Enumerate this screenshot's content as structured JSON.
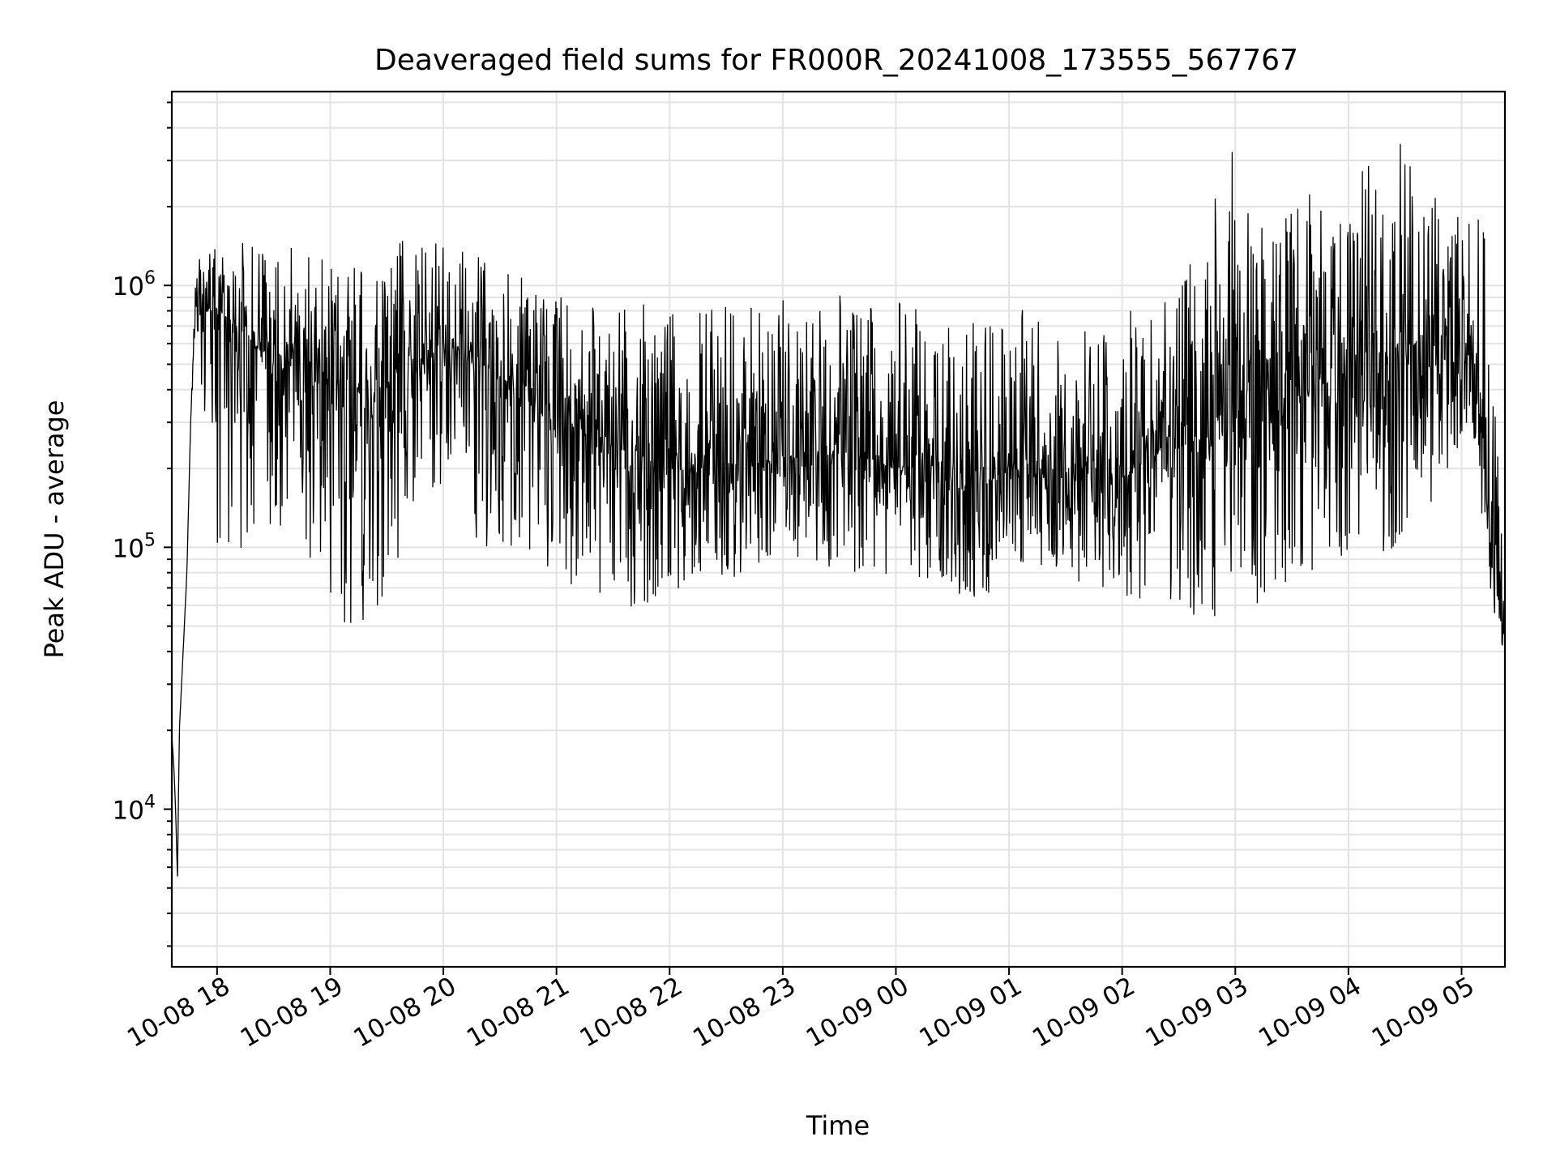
{
  "chart_data": {
    "type": "line",
    "title": "Deaveraged field sums for FR000R_20241008_173555_567767",
    "xlabel": "Time",
    "ylabel": "Peak ADU - average",
    "yscale": "log",
    "ylim": [
      2500,
      5500000
    ],
    "xlim": [
      "2024-10-08 17:36",
      "2024-10-09 05:23"
    ],
    "grid": true,
    "xticks": [
      {
        "t": "2024-10-08 18:00",
        "label": "10-08 18"
      },
      {
        "t": "2024-10-08 19:00",
        "label": "10-08 19"
      },
      {
        "t": "2024-10-08 20:00",
        "label": "10-08 20"
      },
      {
        "t": "2024-10-08 21:00",
        "label": "10-08 21"
      },
      {
        "t": "2024-10-08 22:00",
        "label": "10-08 22"
      },
      {
        "t": "2024-10-08 23:00",
        "label": "10-08 23"
      },
      {
        "t": "2024-10-09 00:00",
        "label": "10-09 00"
      },
      {
        "t": "2024-10-09 01:00",
        "label": "10-09 01"
      },
      {
        "t": "2024-10-09 02:00",
        "label": "10-09 02"
      },
      {
        "t": "2024-10-09 03:00",
        "label": "10-09 03"
      },
      {
        "t": "2024-10-09 04:00",
        "label": "10-09 04"
      },
      {
        "t": "2024-10-09 05:00",
        "label": "10-09 05"
      }
    ],
    "yticks": [
      {
        "v": 10000,
        "base": "10",
        "exp": "4"
      },
      {
        "v": 100000,
        "base": "10",
        "exp": "5"
      },
      {
        "v": 1000000,
        "base": "10",
        "exp": "6"
      }
    ],
    "series_color": "#000000",
    "grid_color": "#e3e3e3",
    "x": [
      "2024-10-08 17:36",
      "2024-10-08 17:37",
      "2024-10-08 17:38",
      "2024-10-08 17:39",
      "2024-10-08 17:40",
      "2024-10-08 17:42",
      "2024-10-08 17:44",
      "2024-10-08 17:46",
      "2024-10-08 17:48",
      "2024-10-08 17:50",
      "2024-10-08 17:52",
      "2024-10-08 17:54",
      "2024-10-08 17:56",
      "2024-10-08 18:00",
      "2024-10-08 18:10",
      "2024-10-08 18:20",
      "2024-10-08 18:30",
      "2024-10-08 18:40",
      "2024-10-08 18:50",
      "2024-10-08 19:00",
      "2024-10-08 19:10",
      "2024-10-08 19:20",
      "2024-10-08 19:30",
      "2024-10-08 19:40",
      "2024-10-08 19:50",
      "2024-10-08 20:00",
      "2024-10-08 20:10",
      "2024-10-08 20:20",
      "2024-10-08 20:30",
      "2024-10-08 20:40",
      "2024-10-08 20:50",
      "2024-10-08 21:00",
      "2024-10-08 21:15",
      "2024-10-08 21:30",
      "2024-10-08 21:45",
      "2024-10-08 22:00",
      "2024-10-08 22:15",
      "2024-10-08 22:30",
      "2024-10-08 22:45",
      "2024-10-08 23:00",
      "2024-10-08 23:15",
      "2024-10-08 23:30",
      "2024-10-08 23:45",
      "2024-10-09 00:00",
      "2024-10-09 00:15",
      "2024-10-09 00:30",
      "2024-10-09 00:45",
      "2024-10-09 01:00",
      "2024-10-09 01:15",
      "2024-10-09 01:30",
      "2024-10-09 01:45",
      "2024-10-09 02:00",
      "2024-10-09 02:15",
      "2024-10-09 02:30",
      "2024-10-09 02:45",
      "2024-10-09 03:00",
      "2024-10-09 03:15",
      "2024-10-09 03:30",
      "2024-10-09 03:45",
      "2024-10-09 04:00",
      "2024-10-09 04:15",
      "2024-10-09 04:30",
      "2024-10-09 04:45",
      "2024-10-09 05:00",
      "2024-10-09 05:05",
      "2024-10-09 05:10",
      "2024-10-09 05:15",
      "2024-10-09 05:20",
      "2024-10-09 05:23"
    ],
    "y_mid": [
      19000,
      15000,
      10000,
      5500,
      20000,
      40000,
      80000,
      300000,
      700000,
      900000,
      800000,
      850000,
      800000,
      800000,
      700000,
      600000,
      500000,
      550000,
      500000,
      450000,
      400000,
      380000,
      400000,
      550000,
      500000,
      600000,
      550000,
      500000,
      450000,
      400000,
      330000,
      300000,
      280000,
      250000,
      230000,
      200000,
      200000,
      210000,
      210000,
      220000,
      220000,
      230000,
      220000,
      200000,
      210000,
      190000,
      170000,
      200000,
      190000,
      190000,
      180000,
      190000,
      220000,
      240000,
      260000,
      300000,
      320000,
      350000,
      400000,
      500000,
      550000,
      600000,
      580000,
      560000,
      520000,
      300000,
      100000,
      60000,
      45000
    ],
    "y_high": [
      19000,
      15000,
      10000,
      5500,
      20000,
      40000,
      80000,
      300000,
      900000,
      1400000,
      1300000,
      1200000,
      1400000,
      1500000,
      1600000,
      1500000,
      1600000,
      1500000,
      1400000,
      1300000,
      1200000,
      1100000,
      1300000,
      1600000,
      1500000,
      1500000,
      1400000,
      1300000,
      1200000,
      1100000,
      1000000,
      950000,
      900000,
      900000,
      850000,
      850000,
      800000,
      900000,
      850000,
      900000,
      900000,
      950000,
      850000,
      900000,
      800000,
      800000,
      750000,
      800000,
      850000,
      700000,
      750000,
      800000,
      900000,
      1200000,
      2000000,
      3500000,
      1800000,
      2000000,
      2500000,
      2400000,
      4000000,
      3500000,
      2500000,
      1800000,
      1700000,
      2200000,
      1000000,
      200000,
      60000
    ],
    "y_low": [
      19000,
      15000,
      10000,
      5500,
      20000,
      40000,
      80000,
      300000,
      500000,
      400000,
      300000,
      150000,
      100000,
      90000,
      80000,
      100000,
      120000,
      100000,
      90000,
      60000,
      40000,
      50000,
      60000,
      120000,
      140000,
      150000,
      130000,
      100000,
      95000,
      90000,
      90000,
      80000,
      65000,
      60000,
      55000,
      60000,
      65000,
      70000,
      80000,
      80000,
      85000,
      80000,
      80000,
      75000,
      70000,
      65000,
      60000,
      85000,
      80000,
      75000,
      70000,
      65000,
      60000,
      55000,
      45000,
      55000,
      60000,
      70000,
      80000,
      90000,
      95000,
      100000,
      150000,
      250000,
      300000,
      150000,
      60000,
      45000,
      40000
    ]
  }
}
